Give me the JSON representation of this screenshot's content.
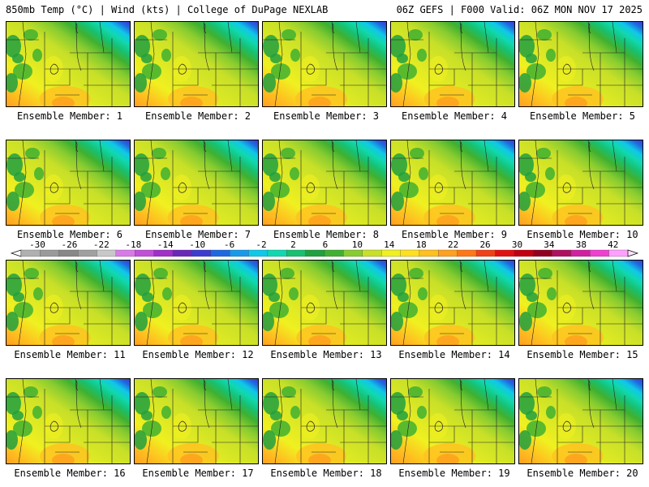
{
  "header": {
    "left": "850mb Temp (°C) | Wind (kts) | College of DuPage NEXLAB",
    "right": "06Z GEFS | F000 Valid: 06Z MON NOV 17 2025"
  },
  "caption_prefix": "Ensemble Member: ",
  "members": [
    {
      "label": "Ensemble Member: 1",
      "warm": 0.55
    },
    {
      "label": "Ensemble Member: 2",
      "warm": 0.5
    },
    {
      "label": "Ensemble Member: 3",
      "warm": 0.6
    },
    {
      "label": "Ensemble Member: 4",
      "warm": 0.52
    },
    {
      "label": "Ensemble Member: 5",
      "warm": 0.58
    },
    {
      "label": "Ensemble Member: 6",
      "warm": 0.5
    },
    {
      "label": "Ensemble Member: 7",
      "warm": 0.54
    },
    {
      "label": "Ensemble Member: 8",
      "warm": 0.56
    },
    {
      "label": "Ensemble Member: 9",
      "warm": 0.57
    },
    {
      "label": "Ensemble Member: 10",
      "warm": 0.53
    },
    {
      "label": "Ensemble Member: 11",
      "warm": 0.55
    },
    {
      "label": "Ensemble Member: 12",
      "warm": 0.5
    },
    {
      "label": "Ensemble Member: 13",
      "warm": 0.48
    },
    {
      "label": "Ensemble Member: 14",
      "warm": 0.52
    },
    {
      "label": "Ensemble Member: 15",
      "warm": 0.6
    },
    {
      "label": "Ensemble Member: 16",
      "warm": 0.49
    },
    {
      "label": "Ensemble Member: 17",
      "warm": 0.56
    },
    {
      "label": "Ensemble Member: 18",
      "warm": 0.5
    },
    {
      "label": "Ensemble Member: 19",
      "warm": 0.62
    },
    {
      "label": "Ensemble Member: 20",
      "warm": 0.54
    }
  ],
  "colorbar": {
    "ticks": [
      "-30",
      "-26",
      "-22",
      "-18",
      "-14",
      "-10",
      "-6",
      "-2",
      "2",
      "6",
      "10",
      "14",
      "18",
      "22",
      "26",
      "30",
      "34",
      "38",
      "42"
    ],
    "colors": [
      "#b0b0b0",
      "#9a9a9a",
      "#888888",
      "#a0a0a0",
      "#c8c8c8",
      "#d87ae8",
      "#c050d8",
      "#a030c8",
      "#6a28b8",
      "#3c3cd0",
      "#2068e0",
      "#1898e8",
      "#10c8e8",
      "#10d8b0",
      "#18c070",
      "#20a040",
      "#40b030",
      "#88cc30",
      "#c8e028",
      "#f0f020",
      "#ffe020",
      "#ffc020",
      "#ffa020",
      "#ff7818",
      "#f04018",
      "#e01010",
      "#c00010",
      "#900020",
      "#b01060",
      "#d020a0",
      "#f040d0",
      "#ffa0ff"
    ]
  }
}
